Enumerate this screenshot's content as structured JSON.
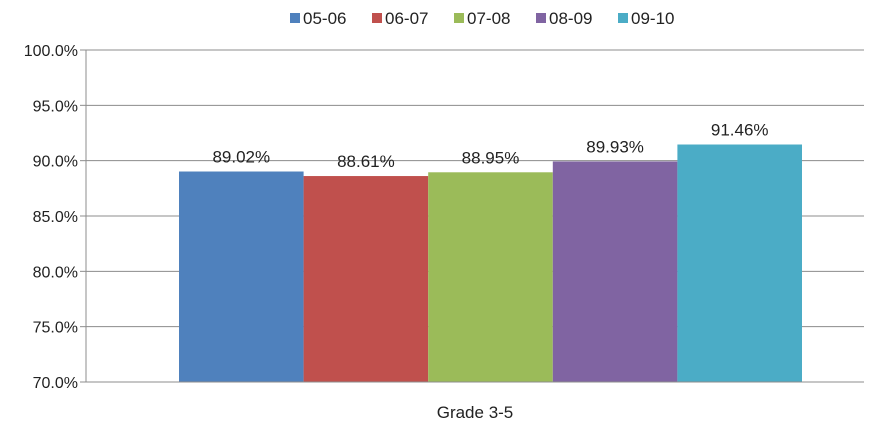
{
  "chart_data": {
    "type": "bar",
    "categories": [
      "Grade 3-5"
    ],
    "series": [
      {
        "name": "05-06",
        "values": [
          89.02
        ],
        "label": "89.02%",
        "color": "#4f81bd"
      },
      {
        "name": "06-07",
        "values": [
          88.61
        ],
        "label": "88.61%",
        "color": "#c0504d"
      },
      {
        "name": "07-08",
        "values": [
          88.95
        ],
        "label": "88.95%",
        "color": "#9bbb59"
      },
      {
        "name": "08-09",
        "values": [
          89.93
        ],
        "label": "89.93%",
        "color": "#8064a2"
      },
      {
        "name": "09-10",
        "values": [
          91.46
        ],
        "label": "91.46%",
        "color": "#4bacc6"
      }
    ],
    "yticks": [
      "70.0%",
      "75.0%",
      "80.0%",
      "85.0%",
      "90.0%",
      "95.0%",
      "100.0%"
    ],
    "ylim": [
      70,
      100
    ],
    "grid": true,
    "legend": "top",
    "title": "",
    "xlabel": "",
    "ylabel": ""
  }
}
